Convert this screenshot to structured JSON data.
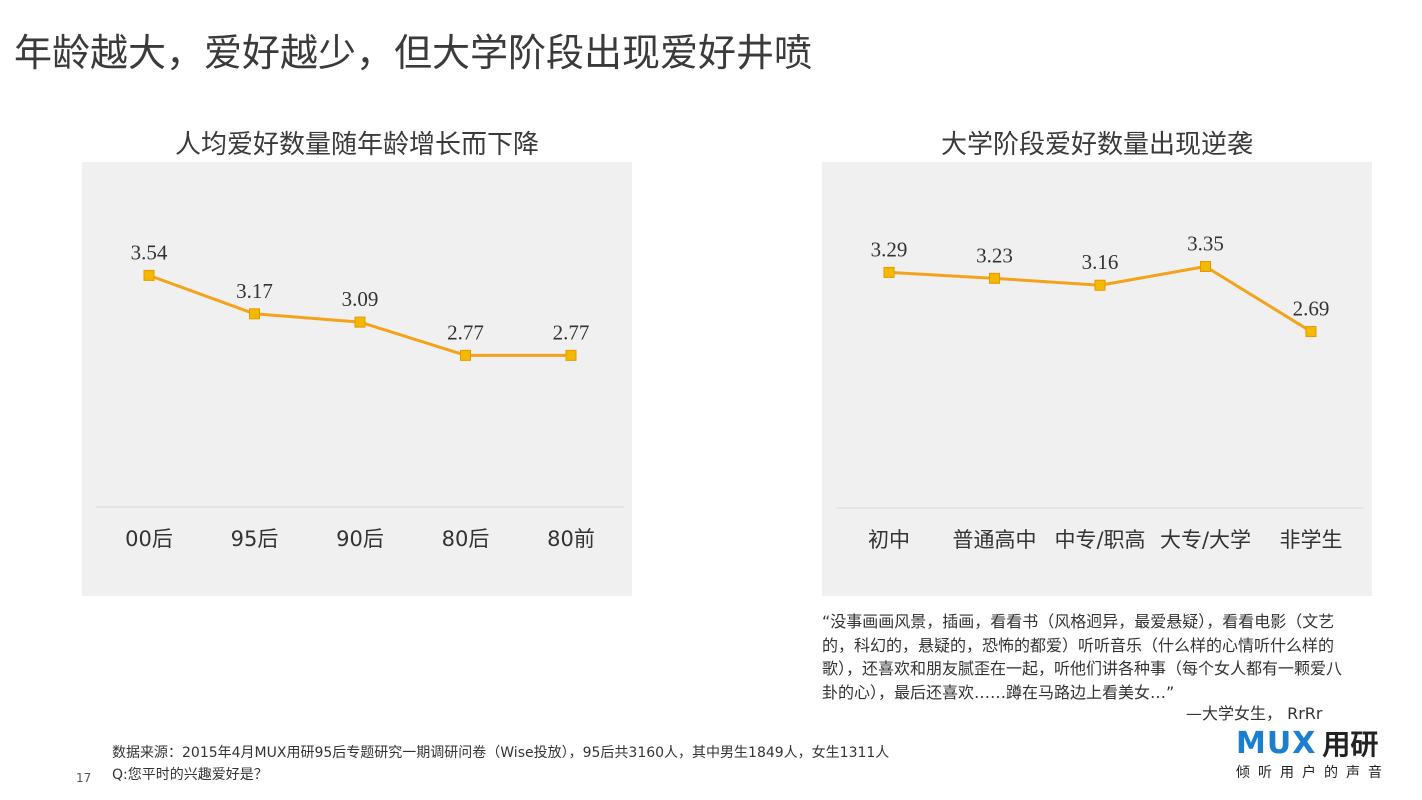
{
  "page": {
    "title": "年龄越大，爱好越少，但大学阶段出现爱好井喷",
    "page_number": "17"
  },
  "chart_data": [
    {
      "type": "line",
      "title": "人均爱好数量随年龄增长而下降",
      "categories": [
        "00后",
        "95后",
        "90后",
        "80后",
        "80前"
      ],
      "values": [
        3.54,
        3.17,
        3.09,
        2.77,
        2.77
      ],
      "labels": [
        "3.54",
        "3.17",
        "3.09",
        "2.77",
        "2.77"
      ],
      "ylim": [
        1.3,
        3.9
      ],
      "grid": false,
      "line_color": "#F5A21B",
      "marker_color": "#F5B800"
    },
    {
      "type": "line",
      "title": "大学阶段爱好数量出现逆袭",
      "categories": [
        "初中",
        "普通高中",
        "中专/职高",
        "大专/大学",
        "非学生"
      ],
      "values": [
        3.29,
        3.23,
        3.16,
        3.35,
        2.69
      ],
      "labels": [
        "3.29",
        "3.23",
        "3.16",
        "3.35",
        "2.69"
      ],
      "ylim": [
        0.9,
        3.7
      ],
      "grid": false,
      "line_color": "#F5A21B",
      "marker_color": "#F5B800"
    }
  ],
  "quote": {
    "text": "“没事画画风景，插画，看看书（风格迥异，最爱悬疑），看看电影（文艺的，科幻的，悬疑的，恐怖的都爱）听听音乐（什么样的心情听什么样的歌），还喜欢和朋友腻歪在一起，听他们讲各种事（每个女人都有一颗爱八卦的心），最后还喜欢……蹲在马路边上看美女…”",
    "signature": "—大学女生， RrRr"
  },
  "footer": {
    "source": "数据来源：2015年4月MUX用研95后专题研究一期调研问卷（Wise投放），95后共3160人，其中男生1849人，女生1311人",
    "question": "Q:您平时的兴趣爱好是？"
  },
  "logo": {
    "brand": "MUX",
    "brand_cn": "用研",
    "tagline": "倾听用户的声音",
    "brand_color": "#1A7FD1"
  }
}
